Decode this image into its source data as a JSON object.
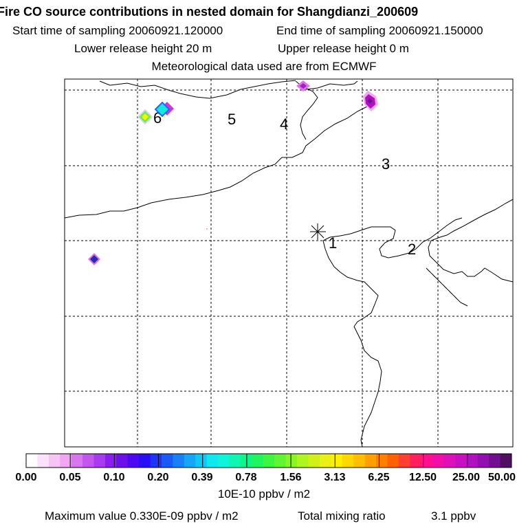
{
  "header": {
    "title": "Fire CO source contributions in nested domain for Shangdianzi_200609",
    "start_time": "Start time of sampling 20060921.120000",
    "end_time": "End time of sampling 20060921.150000",
    "lower_release": "Lower release height   20 m",
    "upper_release": "Upper release height    0 m",
    "met_data": "Meteorological data used are from ECMWF"
  },
  "map": {
    "station_labels": [
      "1",
      "2",
      "3",
      "4",
      "5",
      "6"
    ],
    "receptor": "Shangdianzi"
  },
  "colorbar": {
    "labels": [
      "0.00",
      "0.05",
      "0.10",
      "0.20",
      "0.39",
      "0.78",
      "1.56",
      "3.13",
      "6.25",
      "12.50",
      "25.00",
      "50.00"
    ],
    "colors": [
      "#ffffff",
      "#fbe2fb",
      "#f6c5f6",
      "#f0a6f0",
      "#d776ef",
      "#c356ef",
      "#a83af0",
      "#8a1ef0",
      "#6a10e8",
      "#4b0af0",
      "#2a0ff5",
      "#1c35f5",
      "#1a5af5",
      "#1a80f5",
      "#16a6f5",
      "#10c8f5",
      "#10e8f0",
      "#10f5d8",
      "#10f5b0",
      "#10f588",
      "#20f560",
      "#40f540",
      "#60f530",
      "#88f525",
      "#b0f520",
      "#d0f018",
      "#eaf015",
      "#fff000",
      "#ffd800",
      "#ffbe00",
      "#ffa000",
      "#ff8000",
      "#ff6000",
      "#ff4030",
      "#ff2060",
      "#ff1090",
      "#f010a8",
      "#e010b8",
      "#c810c0",
      "#b010c0",
      "#9010b0",
      "#701090",
      "#501060"
    ],
    "units": "10E-10 ppbv / m2"
  },
  "footer": {
    "max_value": "Maximum value  0.330E-09 ppbv / m2",
    "mix_label": "Total mixing ratio",
    "mix_value": "3.1 ppbv"
  }
}
